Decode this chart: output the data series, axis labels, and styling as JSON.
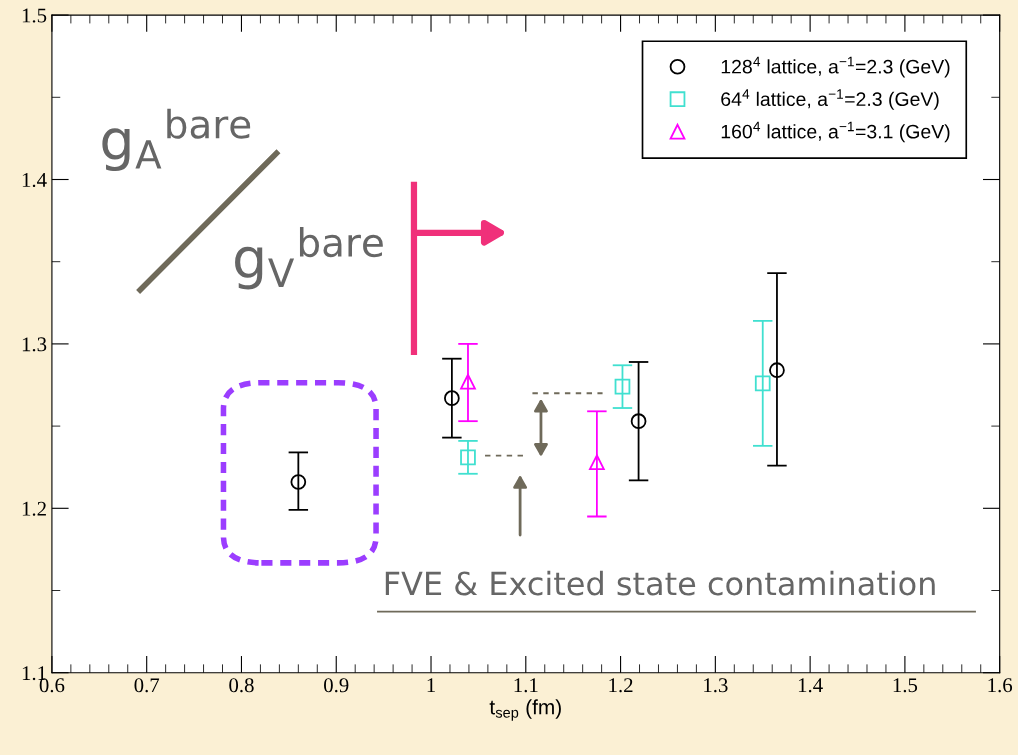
{
  "chart_data": {
    "type": "scatter",
    "xlabel": "t$_{sep}$ (fm)",
    "xlim": [
      0.6,
      1.6
    ],
    "xticks": [
      0.6,
      0.7,
      0.8,
      0.9,
      1,
      1.1,
      1.2,
      1.3,
      1.4,
      1.5,
      1.6
    ],
    "ylim": [
      1.1,
      1.5
    ],
    "yticks": [
      1.1,
      1.2,
      1.3,
      1.4,
      1.5
    ],
    "grid": false,
    "legend": "top right",
    "series": [
      {
        "name": "128$^{4}$ lattice, a$^{−1}$=2.3 (GeV)",
        "color": "#000000",
        "marker": "circle",
        "x": [
          0.86,
          1.022,
          1.219,
          1.365
        ],
        "values": [
          1.216,
          1.267,
          1.253,
          1.284
        ],
        "errors": [
          [
            1.199,
            1.234
          ],
          [
            1.243,
            1.291
          ],
          [
            1.217,
            1.289
          ],
          [
            1.226,
            1.343
          ]
        ]
      },
      {
        "name": "64$^{4}$ lattice, a$^{−1}$=2.3 (GeV)",
        "color": "#40e0d0",
        "marker": "square",
        "x": [
          1.039,
          1.202,
          1.35
        ],
        "values": [
          1.231,
          1.274,
          1.276
        ],
        "errors": [
          [
            1.221,
            1.241
          ],
          [
            1.261,
            1.287
          ],
          [
            1.238,
            1.314
          ]
        ]
      },
      {
        "name": "160$^{4}$ lattice, a$^{−1}$=3.1 (GeV)",
        "color": "#ff00ff",
        "marker": "triangle",
        "x": [
          1.039,
          1.175
        ],
        "values": [
          1.277,
          1.228
        ],
        "errors": [
          [
            1.253,
            1.3
          ],
          [
            1.195,
            1.259
          ]
        ]
      },
      {
        "type": "line",
        "color": "#6f6a5a",
        "line_style": "dotted",
        "marker": "none",
        "x": [
          1.057,
          1.099
        ],
        "values": [
          1.232,
          1.232
        ]
      },
      {
        "type": "line",
        "color": "#6f6a5a",
        "line_style": "dotted",
        "marker": "none",
        "x": [
          1.107,
          1.181
        ],
        "values": [
          1.27,
          1.27
        ]
      }
    ],
    "annotations": [
      "g$_{A}$$^{bare}$",
      "g$_{V}$$^{bare}$",
      "FVE & Excited state contamination"
    ]
  }
}
